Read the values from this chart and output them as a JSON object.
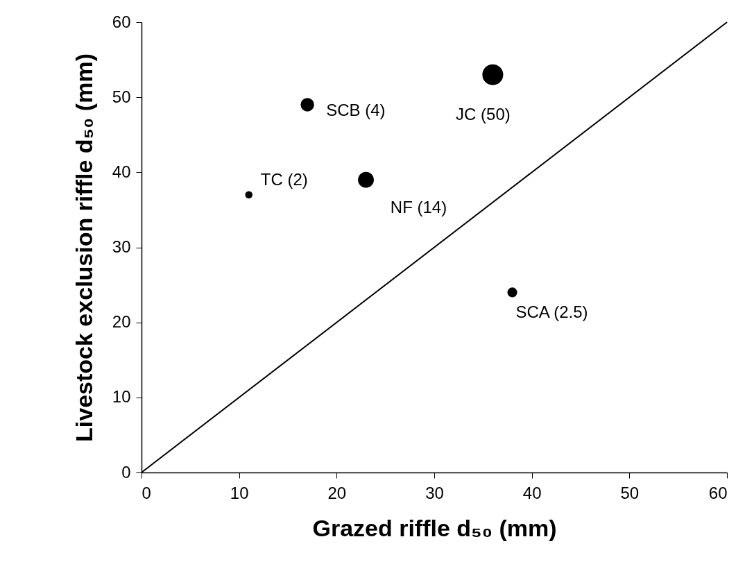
{
  "chart_data": {
    "type": "bubble",
    "xlabel": "Grazed riffle d₅₀ (mm)",
    "ylabel": "Livestock exclusion riffle d₅₀ (mm)",
    "series": [
      {
        "color": "#000000",
        "x": [
          11,
          17,
          23,
          36,
          38
        ],
        "values": [
          37,
          49,
          39,
          53,
          24
        ],
        "sizes": [
          0.125,
          0.42,
          0.58,
          1,
          0.22
        ]
      },
      {
        "type": "line",
        "color": "#000000",
        "x": [
          0,
          60
        ],
        "values": [
          0,
          60
        ]
      }
    ],
    "annotations": [
      {
        "text": "TC (2)",
        "x": 11,
        "y": 37
      },
      {
        "text": "SCB (4)",
        "x": 17,
        "y": 49
      },
      {
        "text": "NF (14)",
        "x": 23,
        "y": 39
      },
      {
        "text": "JC (50)",
        "x": 36,
        "y": 53
      },
      {
        "text": "SCA (2.5)",
        "x": 38,
        "y": 24
      }
    ],
    "xlim": [
      0,
      60
    ],
    "xticks": [
      0,
      10,
      20,
      30,
      40,
      50,
      60
    ],
    "ylim": [
      0,
      60
    ],
    "yticks": [
      0,
      10,
      20,
      30,
      40,
      50,
      60
    ],
    "grid": false
  }
}
